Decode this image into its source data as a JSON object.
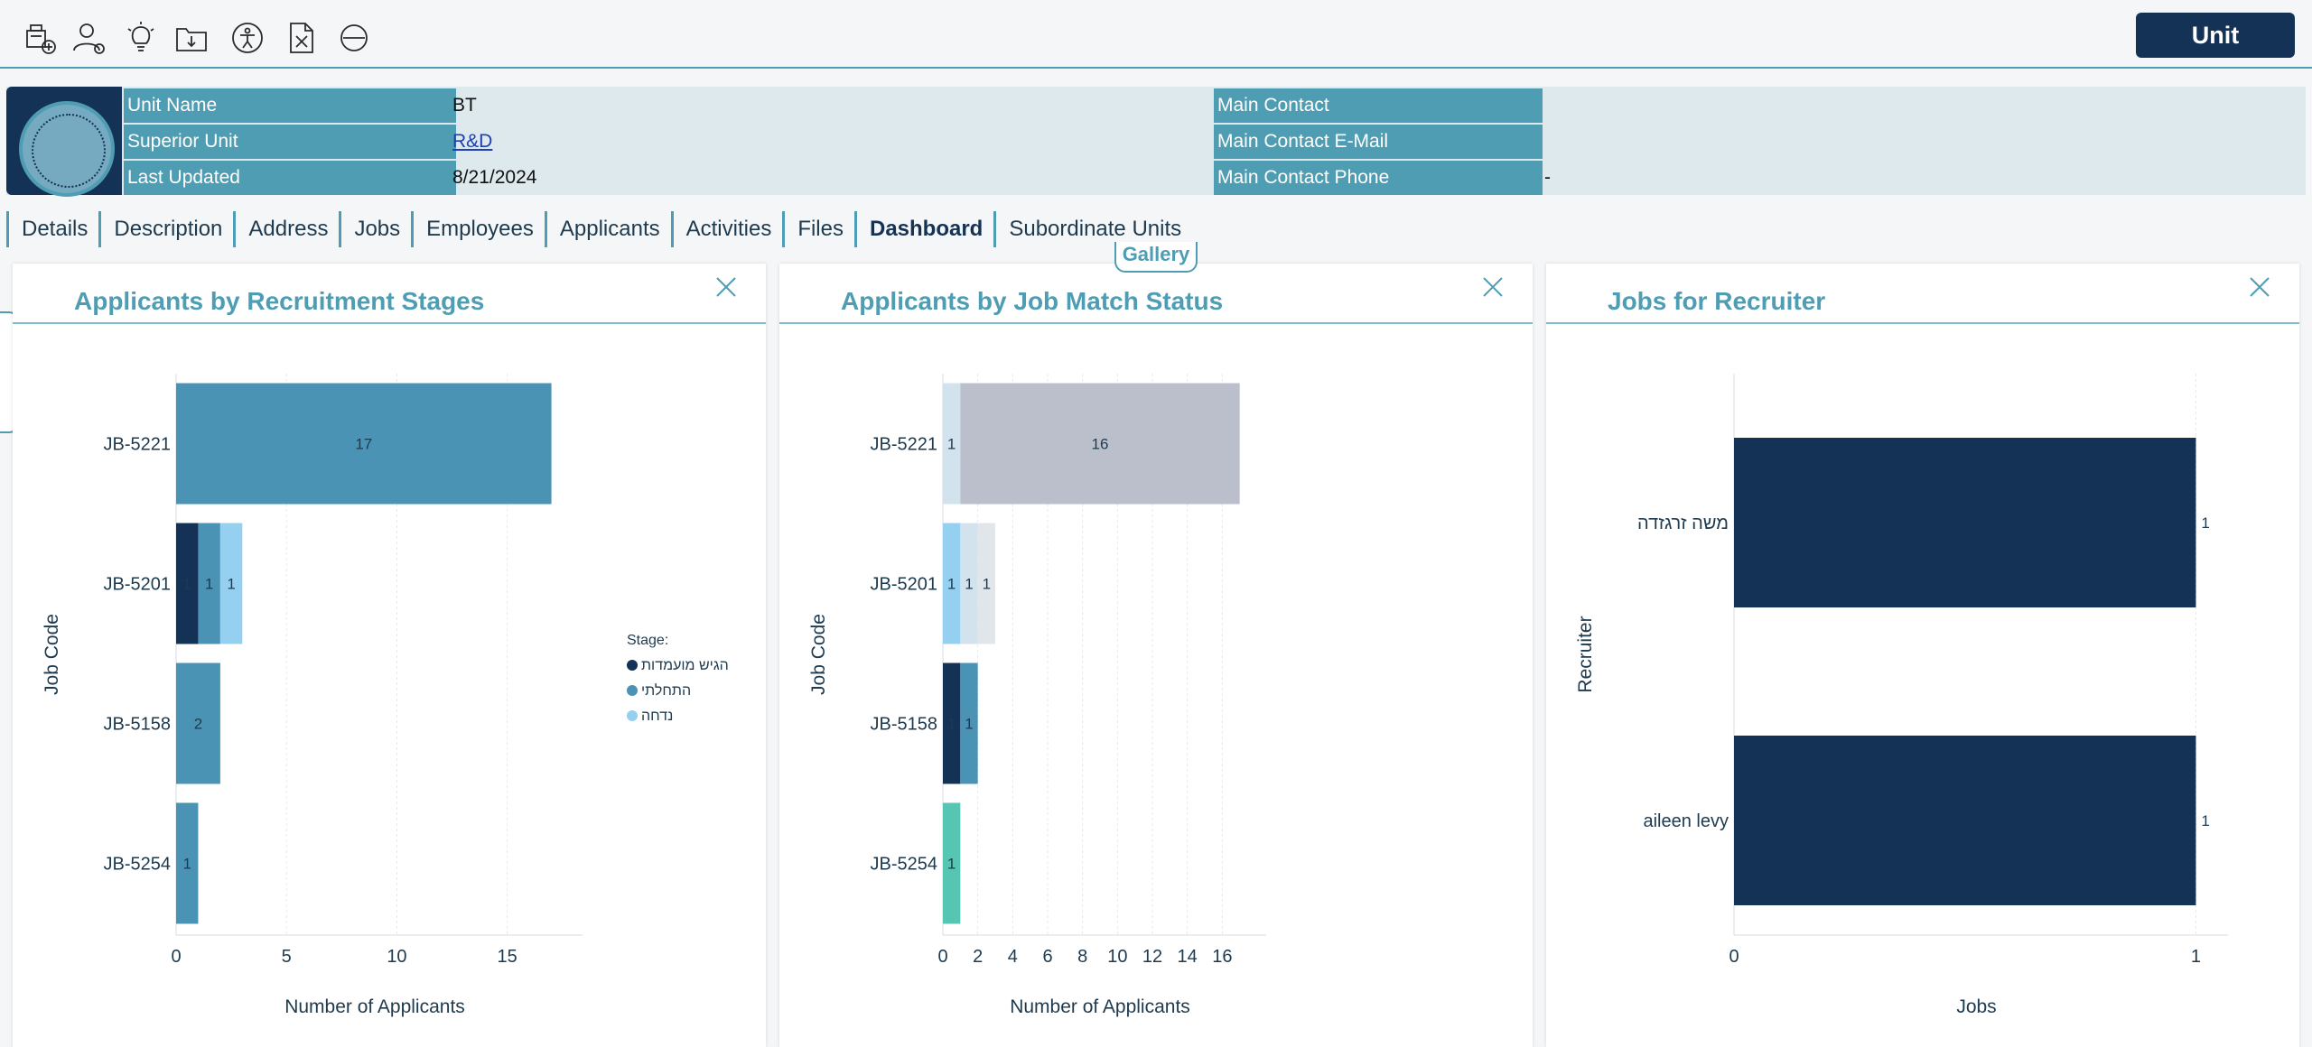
{
  "toolbar": {
    "icons": [
      "add-unit-icon",
      "assign-user-icon",
      "lightbulb-icon",
      "folder-download-icon",
      "accessibility-icon",
      "delete-file-icon",
      "block-icon"
    ],
    "unit_button": "Unit"
  },
  "info": {
    "unit_name_label": "Unit Name",
    "unit_name_value": "BT",
    "superior_unit_label": "Superior Unit",
    "superior_unit_value": "R&D",
    "last_updated_label": "Last Updated",
    "last_updated_value": "8/21/2024",
    "main_contact_label": "Main Contact",
    "main_contact_value": "",
    "main_contact_email_label": "Main Contact E-Mail",
    "main_contact_email_value": "",
    "main_contact_phone_label": "Main Contact Phone",
    "main_contact_phone_value": "-"
  },
  "tabs": [
    {
      "label": "Details"
    },
    {
      "label": "Description"
    },
    {
      "label": "Address"
    },
    {
      "label": "Jobs"
    },
    {
      "label": "Employees"
    },
    {
      "label": "Applicants"
    },
    {
      "label": "Activities"
    },
    {
      "label": "Files"
    },
    {
      "label": "Dashboard",
      "active": true
    },
    {
      "label": "Subordinate Units"
    }
  ],
  "gallery_label": "Gallery",
  "panels": [
    {
      "title": "Applicants by Recruitment Stages"
    },
    {
      "title": "Applicants by Job Match Status"
    },
    {
      "title": "Jobs for Recruiter"
    }
  ],
  "chart_data": [
    {
      "type": "bar",
      "orientation": "horizontal",
      "stacked": true,
      "title": "Applicants by Recruitment Stages",
      "xlabel": "Number of Applicants",
      "ylabel": "Job Code",
      "xlim": [
        0,
        18
      ],
      "xticks": [
        0,
        5,
        10,
        15
      ],
      "categories": [
        "JB-5221",
        "JB-5201",
        "JB-5158",
        "JB-5254"
      ],
      "legend_title": "Stage:",
      "legend_position": "right",
      "series": [
        {
          "name": "הגיש מועמדות",
          "color": "#143255",
          "values": [
            0,
            1,
            0,
            0
          ]
        },
        {
          "name": "התחלתי",
          "color": "#4a93b5",
          "values": [
            17,
            1,
            2,
            1
          ]
        },
        {
          "name": "נדחה",
          "color": "#96d0f0",
          "values": [
            0,
            1,
            0,
            0
          ]
        }
      ]
    },
    {
      "type": "bar",
      "orientation": "horizontal",
      "stacked": true,
      "title": "Applicants by Job Match Status",
      "xlabel": "Number of Applicants",
      "ylabel": "Job Code",
      "xlim": [
        0,
        18
      ],
      "xticks": [
        0,
        2,
        4,
        6,
        8,
        10,
        12,
        14,
        16
      ],
      "categories": [
        "JB-5221",
        "JB-5201",
        "JB-5158",
        "JB-5254"
      ],
      "series": [
        {
          "segments": [
            {
              "value": 1,
              "color": "#d2e3ee"
            },
            {
              "value": 16,
              "color": "#bbbfcc"
            }
          ]
        },
        {
          "segments": [
            {
              "value": 1,
              "color": "#96d0f0"
            },
            {
              "value": 1,
              "color": "#d2e3ee"
            },
            {
              "value": 1,
              "color": "#e1e6ea"
            }
          ]
        },
        {
          "segments": [
            {
              "value": 1,
              "color": "#143255"
            },
            {
              "value": 1,
              "color": "#4a93b5"
            }
          ]
        },
        {
          "segments": [
            {
              "value": 1,
              "color": "#56c6b3"
            }
          ]
        }
      ]
    },
    {
      "type": "bar",
      "orientation": "horizontal",
      "title": "Jobs for Recruiter",
      "xlabel": "Jobs",
      "ylabel": "Recruiter",
      "xlim": [
        0,
        1.05
      ],
      "xticks": [
        0,
        1
      ],
      "categories": [
        "משה זרגזדה",
        "aileen levy"
      ],
      "values": [
        1,
        1
      ],
      "color": "#143255"
    }
  ]
}
